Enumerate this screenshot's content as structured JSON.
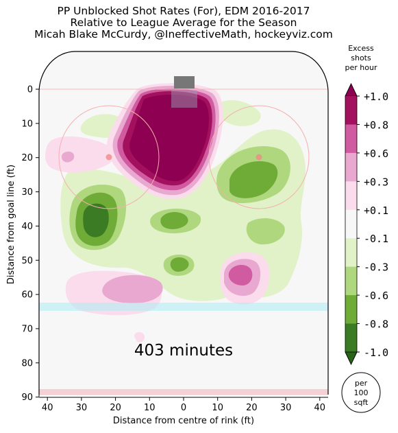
{
  "title_lines": [
    "PP Unblocked Shot Rates (For), EDM 2016-2017",
    "Relative to League Average for the Season",
    "Micah Blake McCurdy, @IneffectiveMath, hockeyviz.com"
  ],
  "minutes_label": "403 minutes",
  "colorbar": {
    "title_lines": [
      "Excess",
      "shots",
      "per hour"
    ],
    "tick_labels": [
      "+1.0",
      "+0.8",
      "+0.6",
      "+0.3",
      "+0.1",
      "-0.1",
      "-0.3",
      "-0.6",
      "-0.8",
      "-1.0"
    ],
    "colors": [
      "#a2105e",
      "#d05ba0",
      "#e9a8d0",
      "#fadcec",
      "#f7f7f7",
      "#e1f2c8",
      "#afd77e",
      "#6fab37",
      "#3a7b23"
    ],
    "top_arrow_color": "#8e0152",
    "bottom_arrow_color": "#276419"
  },
  "units_badge": [
    "per",
    "100",
    "sqft"
  ],
  "chart_data": {
    "type": "heatmap",
    "title": "PP Unblocked Shot Rates (For), EDM 2016-2017 / Relative to League Average for the Season",
    "xlabel": "Distance from centre of rink (ft)",
    "ylabel": "Distance from goal line (ft)",
    "xlim": [
      -42.5,
      42.5
    ],
    "ylim": [
      90,
      -11
    ],
    "x_ticks": [
      -40,
      -30,
      -20,
      -10,
      0,
      10,
      20,
      30,
      40
    ],
    "x_tick_labels": [
      "40",
      "30",
      "20",
      "10",
      "0",
      "10",
      "20",
      "30",
      "40"
    ],
    "y_ticks": [
      0,
      10,
      20,
      30,
      40,
      50,
      60,
      70,
      80,
      90
    ],
    "y_tick_labels": [
      "0",
      "10",
      "20",
      "30",
      "40",
      "50",
      "60",
      "70",
      "80",
      "90"
    ],
    "value_units": "excess shots per hour per 100 sqft",
    "levels": [
      -1.0,
      -0.8,
      -0.6,
      -0.3,
      -0.1,
      0.1,
      0.3,
      0.6,
      0.8,
      1.0
    ],
    "regions": [
      {
        "x": 0,
        "y": 14,
        "rx": 15,
        "ry": 13,
        "value": 1.0
      },
      {
        "x": -11,
        "y": 20,
        "rx": 11,
        "ry": 9,
        "value": 1.0
      },
      {
        "x": -3,
        "y": 17,
        "rx": 17,
        "ry": 15,
        "value": 0.8
      },
      {
        "x": -33,
        "y": 20,
        "rx": 3,
        "ry": 2,
        "value": 0.3
      },
      {
        "x": -22,
        "y": 20,
        "rx": 3,
        "ry": 2,
        "value": 0.3
      },
      {
        "x": -31,
        "y": 39,
        "rx": 6,
        "ry": 8,
        "value": -1.0
      },
      {
        "x": -28,
        "y": 37,
        "rx": 10,
        "ry": 11,
        "value": -0.6
      },
      {
        "x": 21,
        "y": 27,
        "rx": 9,
        "ry": 6,
        "value": -0.6
      },
      {
        "x": 3,
        "y": 38,
        "rx": 5,
        "ry": 3,
        "value": -0.6
      },
      {
        "x": 2,
        "y": 51,
        "rx": 3,
        "ry": 2,
        "value": -0.6
      },
      {
        "x": 20,
        "y": 53,
        "rx": 4,
        "ry": 4,
        "value": 0.6
      },
      {
        "x": -17,
        "y": 58,
        "rx": 6,
        "ry": 3,
        "value": 0.6
      },
      {
        "x": -13,
        "y": 73,
        "rx": 2,
        "ry": 1.5,
        "value": 0.1
      }
    ]
  }
}
